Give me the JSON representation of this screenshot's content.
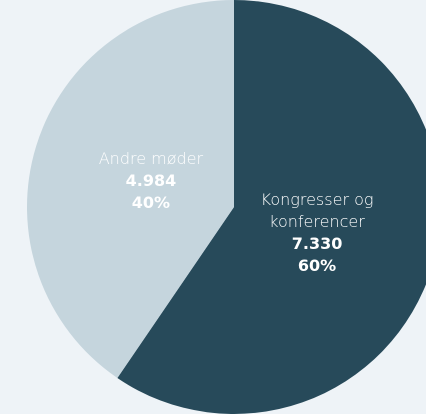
{
  "chart_data": {
    "type": "pie",
    "categories": [
      "Kongresser og konferencer",
      "Andre møder"
    ],
    "values": [
      7330,
      4984
    ],
    "value_labels": [
      "7.330",
      "4.984"
    ],
    "percents": [
      60,
      40
    ],
    "percent_labels": [
      "60%",
      "40%"
    ],
    "colors": [
      "#274a5a",
      "#c5d5dd"
    ]
  }
}
